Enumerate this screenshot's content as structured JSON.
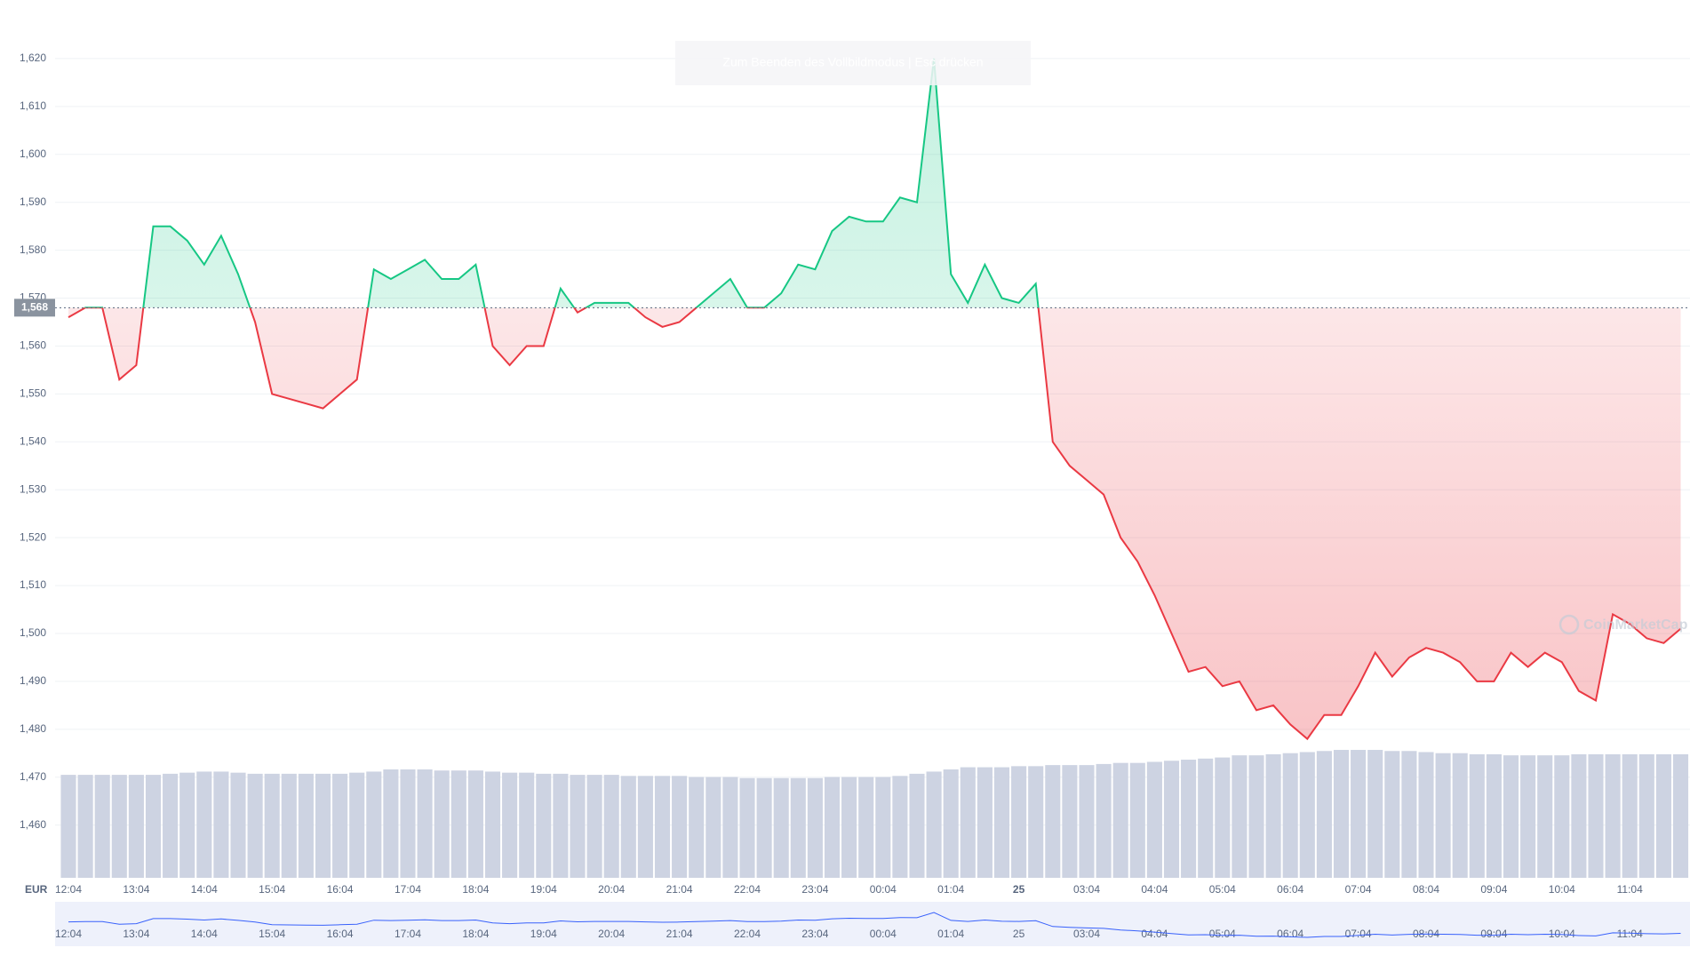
{
  "chart_data": {
    "type": "baseline-line",
    "currency_label": "EUR",
    "overlay_text": "Zum Beenden des Vollbildmodus | Esc drücken",
    "watermark": "CoinMarketCap",
    "baseline": 1568,
    "baseline_label": "1,568",
    "up_color": "#16c784",
    "down_color": "#ea3943",
    "volume_color": "#cdd3e2",
    "grid": true,
    "ylim": [
      1449,
      1630
    ],
    "yticks": [
      {
        "value": 1460,
        "label": "1,460"
      },
      {
        "value": 1470,
        "label": "1,470"
      },
      {
        "value": 1480,
        "label": "1,480"
      },
      {
        "value": 1490,
        "label": "1,490"
      },
      {
        "value": 1500,
        "label": "1,500"
      },
      {
        "value": 1510,
        "label": "1,510"
      },
      {
        "value": 1520,
        "label": "1,520"
      },
      {
        "value": 1530,
        "label": "1,530"
      },
      {
        "value": 1540,
        "label": "1,540"
      },
      {
        "value": 1550,
        "label": "1,550"
      },
      {
        "value": 1560,
        "label": "1,560"
      },
      {
        "value": 1570,
        "label": "1,570"
      },
      {
        "value": 1580,
        "label": "1,580"
      },
      {
        "value": 1590,
        "label": "1,590"
      },
      {
        "value": 1600,
        "label": "1,600"
      },
      {
        "value": 1610,
        "label": "1,610"
      },
      {
        "value": 1620,
        "label": "1,620"
      }
    ],
    "categories": [
      "12:04",
      null,
      null,
      null,
      "13:04",
      null,
      null,
      null,
      "14:04",
      null,
      null,
      null,
      "15:04",
      null,
      null,
      null,
      "16:04",
      null,
      null,
      null,
      "17:04",
      null,
      null,
      null,
      "18:04",
      null,
      null,
      null,
      "19:04",
      null,
      null,
      null,
      "20:04",
      null,
      null,
      null,
      "21:04",
      null,
      null,
      null,
      "22:04",
      null,
      null,
      null,
      "23:04",
      null,
      null,
      null,
      "00:04",
      null,
      null,
      null,
      "01:04",
      null,
      null,
      null,
      "25",
      null,
      null,
      null,
      "03:04",
      null,
      null,
      null,
      "04:04",
      null,
      null,
      null,
      "05:04",
      null,
      null,
      null,
      "06:04",
      null,
      null,
      null,
      "07:04",
      null,
      null,
      null,
      "08:04",
      null,
      null,
      null,
      "09:04",
      null,
      null,
      null,
      "10:04",
      null,
      null,
      null,
      "11:04",
      null,
      null,
      null
    ],
    "values": [
      1566,
      1568,
      1568,
      1553,
      1556,
      1585,
      1585,
      1582,
      1577,
      1583,
      1575,
      1565,
      1550,
      1549,
      1548,
      1547,
      1550,
      1553,
      1576,
      1574,
      1576,
      1578,
      1574,
      1574,
      1577,
      1560,
      1556,
      1560,
      1560,
      1572,
      1567,
      1569,
      1569,
      1569,
      1566,
      1564,
      1565,
      1568,
      1571,
      1574,
      1568,
      1568,
      1571,
      1577,
      1576,
      1584,
      1587,
      1586,
      1586,
      1591,
      1590,
      1620,
      1575,
      1569,
      1577,
      1570,
      1569,
      1573,
      1540,
      1535,
      1532,
      1529,
      1520,
      1515,
      1508,
      1500,
      1492,
      1493,
      1489,
      1490,
      1484,
      1485,
      1481,
      1478,
      1483,
      1483,
      1489,
      1496,
      1491,
      1495,
      1497,
      1496,
      1494,
      1490,
      1490,
      1496,
      1493,
      1496,
      1494,
      1488,
      1486,
      1504,
      1502,
      1499,
      1498,
      1501
    ],
    "volume_ylim": [
      0,
      800
    ],
    "volume": [
      95,
      95,
      95,
      95,
      95,
      95,
      96,
      97,
      98,
      98,
      97,
      96,
      96,
      96,
      96,
      96,
      96,
      97,
      98,
      100,
      100,
      100,
      99,
      99,
      99,
      98,
      97,
      97,
      96,
      96,
      95,
      95,
      95,
      94,
      94,
      94,
      94,
      93,
      93,
      93,
      92,
      92,
      92,
      92,
      92,
      93,
      93,
      93,
      93,
      94,
      96,
      98,
      100,
      102,
      102,
      102,
      103,
      103,
      104,
      104,
      104,
      105,
      106,
      106,
      107,
      108,
      109,
      110,
      111,
      113,
      113,
      114,
      115,
      116,
      117,
      118,
      118,
      118,
      117,
      117,
      116,
      115,
      115,
      114,
      114,
      113,
      113,
      113,
      113,
      114,
      114,
      114,
      114,
      114,
      114,
      114
    ]
  }
}
